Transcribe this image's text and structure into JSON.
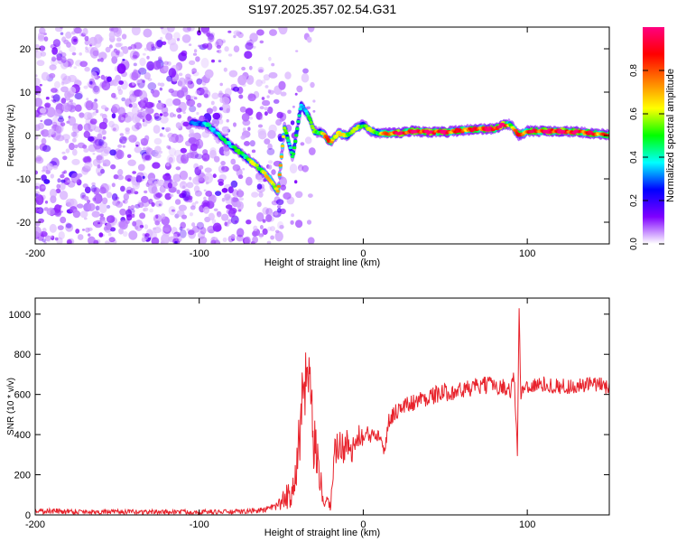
{
  "chart_data": [
    {
      "type": "heatmap",
      "title": "S197.2025.357.02.54.G31",
      "xlabel": "Height of straight line (km)",
      "ylabel": "Frequency (Hz)",
      "xlim": [
        -200,
        150
      ],
      "ylim": [
        -25,
        25
      ],
      "x_ticks": [
        -200,
        -100,
        0,
        100
      ],
      "y_ticks": [
        20,
        10,
        0,
        -10,
        -20
      ],
      "colorbar": {
        "label": "Normalized spectral amplitude",
        "range": [
          0,
          1
        ],
        "ticks": [
          "0.0",
          "0.2",
          "0.4",
          "0.6",
          "0.8"
        ],
        "stops": [
          "#ffffff",
          "#7f00ff",
          "#0000ff",
          "#00ffff",
          "#00ff00",
          "#ffff00",
          "#ff7f00",
          "#ff0000",
          "#ff0080"
        ]
      },
      "ridge": {
        "x": [
          -105,
          -95,
          -85,
          -75,
          -65,
          -57,
          -52,
          -48,
          -43,
          -38,
          -34,
          -30,
          -25,
          -20,
          -15,
          -10,
          -5,
          0,
          5,
          10,
          20,
          30,
          40,
          50,
          60,
          70,
          80,
          85,
          90,
          95,
          100,
          110,
          120,
          130,
          140,
          150
        ],
        "freq": [
          3,
          2.5,
          -1,
          -4,
          -7,
          -10,
          -13,
          2,
          -5,
          7,
          5,
          1,
          0.5,
          -1.5,
          0.5,
          0,
          1.5,
          2.5,
          1,
          0.5,
          0.5,
          1,
          0.8,
          0.8,
          1.2,
          1.5,
          1.5,
          2.5,
          2.5,
          0,
          1,
          1,
          1,
          0.8,
          0.5,
          0.2
        ],
        "amplitude": [
          0.25,
          0.35,
          0.4,
          0.45,
          0.55,
          0.6,
          0.7,
          0.5,
          0.45,
          0.35,
          0.4,
          0.5,
          0.55,
          0.8,
          0.55,
          0.6,
          0.5,
          0.55,
          0.5,
          0.55,
          0.9,
          0.85,
          0.9,
          0.85,
          0.75,
          0.8,
          0.9,
          0.95,
          0.6,
          0.75,
          0.8,
          0.85,
          0.9,
          0.85,
          0.8,
          0.7
        ]
      }
    },
    {
      "type": "line",
      "xlabel": "Height of straight line (km)",
      "ylabel": "SNR (10 * v/v)",
      "xlim": [
        -200,
        150
      ],
      "ylim": [
        0,
        1080
      ],
      "x_ticks": [
        -200,
        -100,
        0,
        100
      ],
      "y_ticks": [
        0,
        200,
        400,
        600,
        800,
        1000
      ],
      "series": [
        {
          "name": "SNR",
          "color": "#e8232c",
          "x": [
            -200,
            -180,
            -160,
            -140,
            -120,
            -100,
            -80,
            -70,
            -60,
            -55,
            -50,
            -45,
            -42,
            -40,
            -38,
            -36,
            -34,
            -32,
            -30,
            -28,
            -26,
            -24,
            -22,
            -20,
            -18,
            -15,
            -12,
            -10,
            -8,
            -5,
            -2,
            0,
            5,
            10,
            13,
            15,
            18,
            20,
            25,
            30,
            40,
            50,
            60,
            70,
            80,
            88,
            90,
            92,
            94,
            95,
            96,
            98,
            100,
            110,
            120,
            130,
            140,
            150
          ],
          "values": [
            20,
            18,
            15,
            15,
            15,
            15,
            15,
            18,
            25,
            35,
            60,
            100,
            200,
            300,
            450,
            600,
            700,
            500,
            350,
            250,
            150,
            80,
            50,
            40,
            300,
            350,
            330,
            380,
            300,
            350,
            400,
            380,
            400,
            420,
            350,
            450,
            500,
            520,
            540,
            560,
            590,
            610,
            620,
            640,
            650,
            630,
            620,
            700,
            300,
            1050,
            600,
            640,
            640,
            650,
            640,
            640,
            650,
            640
          ],
          "amplitude": [
            15,
            15,
            12,
            12,
            12,
            12,
            12,
            12,
            15,
            20,
            40,
            80,
            120,
            180,
            200,
            220,
            220,
            200,
            150,
            120,
            90,
            60,
            40,
            30,
            100,
            80,
            80,
            70,
            60,
            60,
            60,
            55,
            50,
            50,
            80,
            50,
            45,
            45,
            45,
            45,
            45,
            45,
            45,
            45,
            45,
            40,
            40,
            40,
            40,
            0,
            40,
            40,
            40,
            40,
            40,
            40,
            40,
            40
          ]
        }
      ]
    }
  ]
}
